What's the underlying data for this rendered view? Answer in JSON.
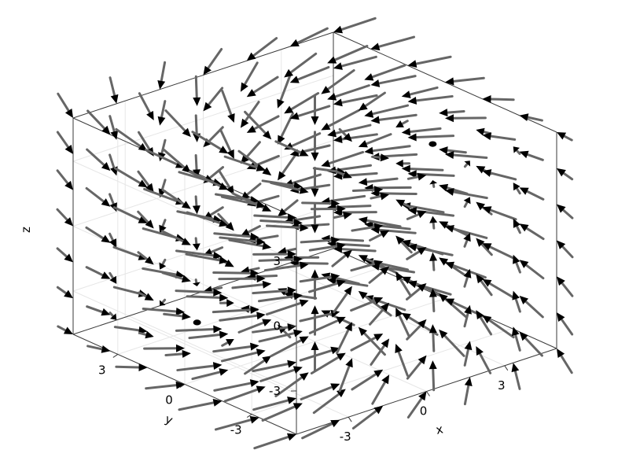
{
  "chart_data": {
    "type": "quiver3d",
    "title": "",
    "xlabel": "x",
    "ylabel": "y",
    "zlabel": "z",
    "xlim": [
      -5,
      5
    ],
    "ylim": [
      -5,
      5
    ],
    "zlim": [
      -5,
      5
    ],
    "grid": true,
    "box": true,
    "xticks": [
      {
        "value": -3,
        "label": "-3"
      },
      {
        "value": 0,
        "label": "0"
      },
      {
        "value": 3,
        "label": "3"
      }
    ],
    "yticks": [
      {
        "value": -3,
        "label": "-3"
      },
      {
        "value": 0,
        "label": "0"
      },
      {
        "value": 3,
        "label": "3"
      }
    ],
    "zticks": [
      {
        "value": -3,
        "label": "-3"
      },
      {
        "value": 0,
        "label": "0"
      },
      {
        "value": 3,
        "label": "3"
      }
    ],
    "grid_points": [
      -5,
      -3.33,
      -1.67,
      0,
      1.67,
      3.33,
      5
    ],
    "field": "rotation about the z axis plus radial inflow toward the origin",
    "arrow_color": "#000000",
    "stem_color": "#666666"
  }
}
